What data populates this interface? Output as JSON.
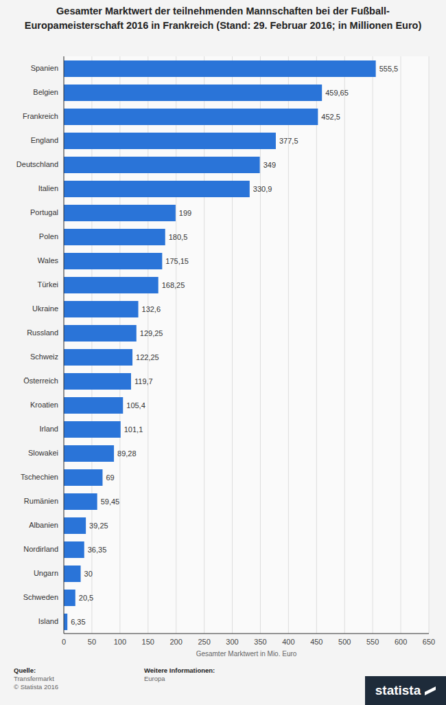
{
  "chart_data": {
    "type": "bar",
    "orientation": "horizontal",
    "title": "Gesamter Marktwert der teilnehmenden Mannschaften bei der Fußball-Europameisterschaft 2016 in Frankreich (Stand: 29. Februar 2016; in Millionen Euro)",
    "x_label": "Gesamter Marktwert in Mio. Euro",
    "categories": [
      "Spanien",
      "Belgien",
      "Frankreich",
      "England",
      "Deutschland",
      "Italien",
      "Portugal",
      "Polen",
      "Wales",
      "Türkei",
      "Ukraine",
      "Russland",
      "Schweiz",
      "Österreich",
      "Kroatien",
      "Irland",
      "Slowakei",
      "Tschechien",
      "Rumänien",
      "Albanien",
      "Nordirland",
      "Ungarn",
      "Schweden",
      "Island"
    ],
    "values": [
      555.5,
      459.65,
      452.5,
      377.5,
      349,
      330.9,
      199,
      180.5,
      175.15,
      168.25,
      132.6,
      129.25,
      122.25,
      119.7,
      105.4,
      101.1,
      89.28,
      69,
      59.45,
      39.25,
      36.35,
      30,
      20.5,
      6.35
    ],
    "value_labels": [
      "555,5",
      "459,65",
      "452,5",
      "377,5",
      "349",
      "330,9",
      "199",
      "180,5",
      "175,15",
      "168,25",
      "132,6",
      "129,25",
      "122,25",
      "119,7",
      "105,4",
      "101,1",
      "89,28",
      "69",
      "59,45",
      "39,25",
      "36,35",
      "30",
      "20,5",
      "6,35"
    ],
    "color": "#2a74d8",
    "xlim": [
      0,
      650
    ],
    "xticks": [
      0,
      50,
      100,
      150,
      200,
      250,
      300,
      350,
      400,
      450,
      500,
      550,
      600,
      650
    ],
    "grid": true,
    "data_labels": true,
    "footer": {
      "source_title": "Quelle:",
      "source_lines": [
        "Transfermarkt",
        "© Statista 2016"
      ],
      "info_title": "Weitere Informationen:",
      "info_lines": [
        "Europa"
      ],
      "logo": "statista"
    }
  }
}
